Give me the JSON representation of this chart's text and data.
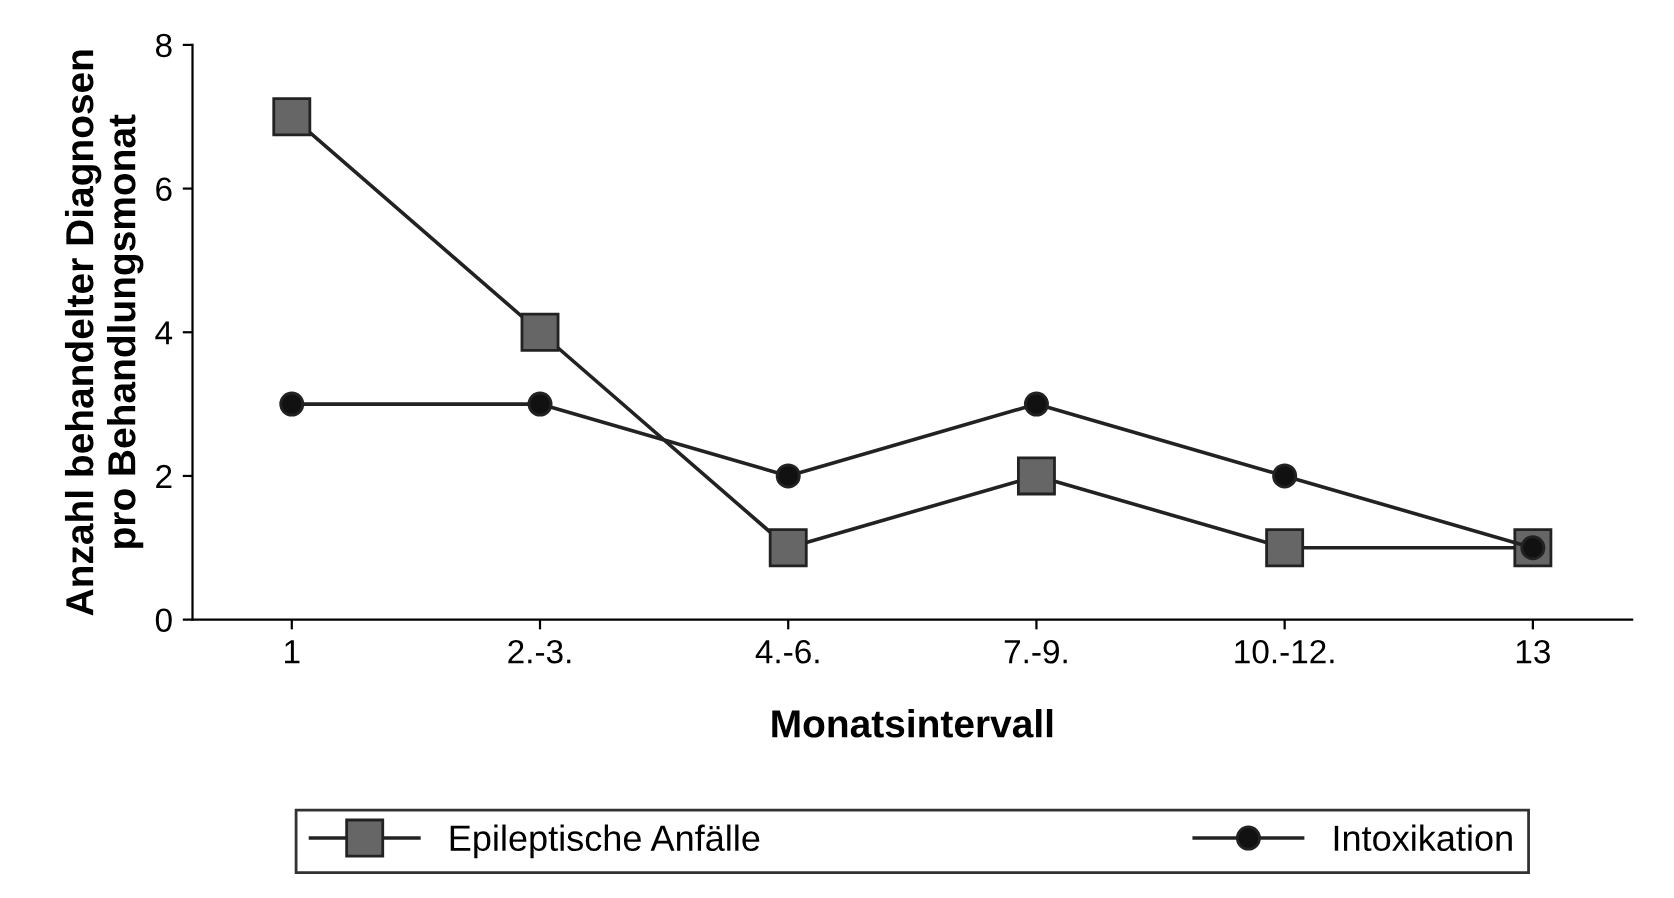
{
  "chart_data": {
    "type": "line",
    "xlabel": "Monatsintervall",
    "ylabel": "Anzahl behandelter Diagnosen\npro Behandlungsmonat",
    "categories": [
      "1",
      "2.-3.",
      "4.-6.",
      "7.-9.",
      "10.-12.",
      "13"
    ],
    "series": [
      {
        "name": "Epileptische Anfälle",
        "color": "#666666",
        "marker": "square",
        "values": [
          7,
          4,
          1,
          2,
          1,
          1
        ]
      },
      {
        "name": "Intoxikation",
        "color": "#111111",
        "marker": "circle",
        "values": [
          3,
          3,
          2,
          3,
          2,
          1
        ]
      }
    ],
    "ylim": [
      0,
      8
    ],
    "yticks": [
      0,
      2,
      4,
      6,
      8
    ],
    "grid": false,
    "legend": "bottom",
    "line_style": "solid"
  }
}
